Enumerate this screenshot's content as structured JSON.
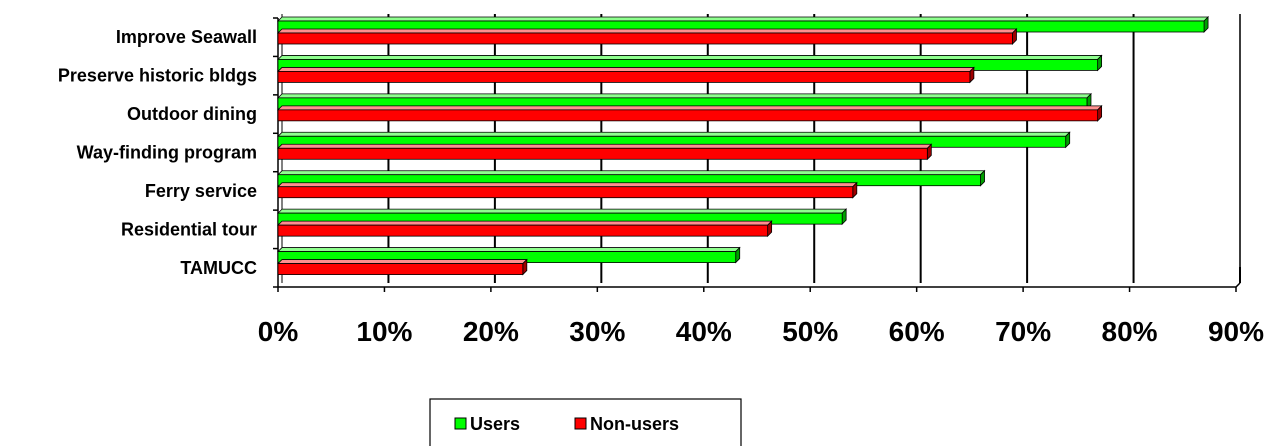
{
  "chart_data": {
    "type": "bar",
    "orientation": "horizontal",
    "categories": [
      "Improve Seawall",
      "Preserve historic bldgs",
      "Outdoor dining",
      "Way-finding program",
      "Ferry service",
      "Residential tour",
      "TAMUCC"
    ],
    "series": [
      {
        "name": "Users",
        "color": "#00ff00",
        "values": [
          87,
          77,
          76,
          74,
          66,
          53,
          43
        ]
      },
      {
        "name": "Non-users",
        "color": "#ff0000",
        "values": [
          69,
          65,
          77,
          61,
          54,
          46,
          23
        ]
      }
    ],
    "xlim": [
      0,
      90
    ],
    "x_ticks": [
      "0%",
      "10%",
      "20%",
      "30%",
      "40%",
      "50%",
      "60%",
      "70%",
      "80%",
      "90%"
    ],
    "grid": "vertical",
    "legend_position": "bottom-center",
    "title": "",
    "xlabel": "",
    "ylabel": ""
  }
}
